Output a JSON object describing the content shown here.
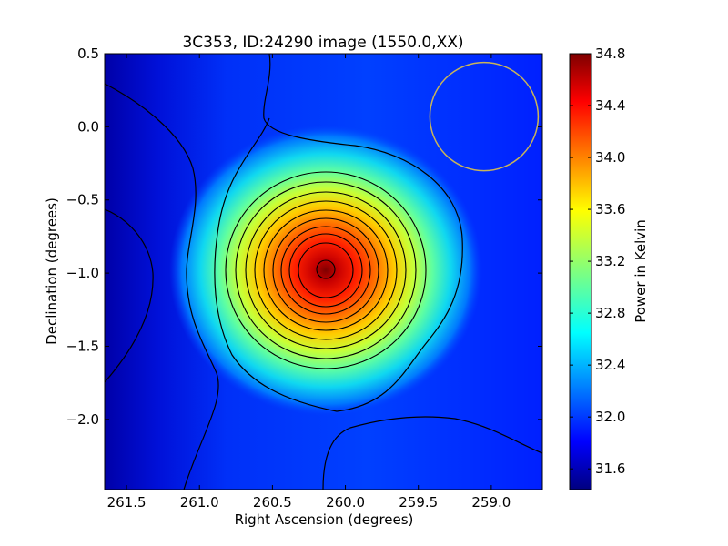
{
  "chart_data": {
    "type": "heatmap",
    "title": "3C353, ID:24290 image (1550.0,XX)",
    "xlabel": "Right Ascension (degrees)",
    "ylabel": "Declination (degrees)",
    "xlim": [
      261.65,
      258.65
    ],
    "ylim": [
      -2.48,
      0.5
    ],
    "xticks": [
      "261.5",
      "261.0",
      "260.5",
      "260.0",
      "259.5",
      "259.0"
    ],
    "yticks": [
      "0.5",
      "0.0",
      "-0.5",
      "-1.0",
      "-1.5",
      "-2.0"
    ],
    "colorbar": {
      "label": "Power in Kelvin",
      "range": [
        31.44,
        34.8
      ],
      "ticks": [
        "34.8",
        "34.4",
        "34.0",
        "33.6",
        "33.2",
        "32.8",
        "32.4",
        "32.0",
        "31.6"
      ],
      "colormap": "jet"
    },
    "peak": {
      "ra": 260.08,
      "dec": -0.96,
      "value": 34.8
    },
    "beam": {
      "ra": 259.05,
      "dec": 0.07,
      "radius_deg": 0.37
    },
    "colors": {
      "contour": "#000000",
      "beam_outline": "#c8b45a",
      "axis": "#000000"
    }
  }
}
